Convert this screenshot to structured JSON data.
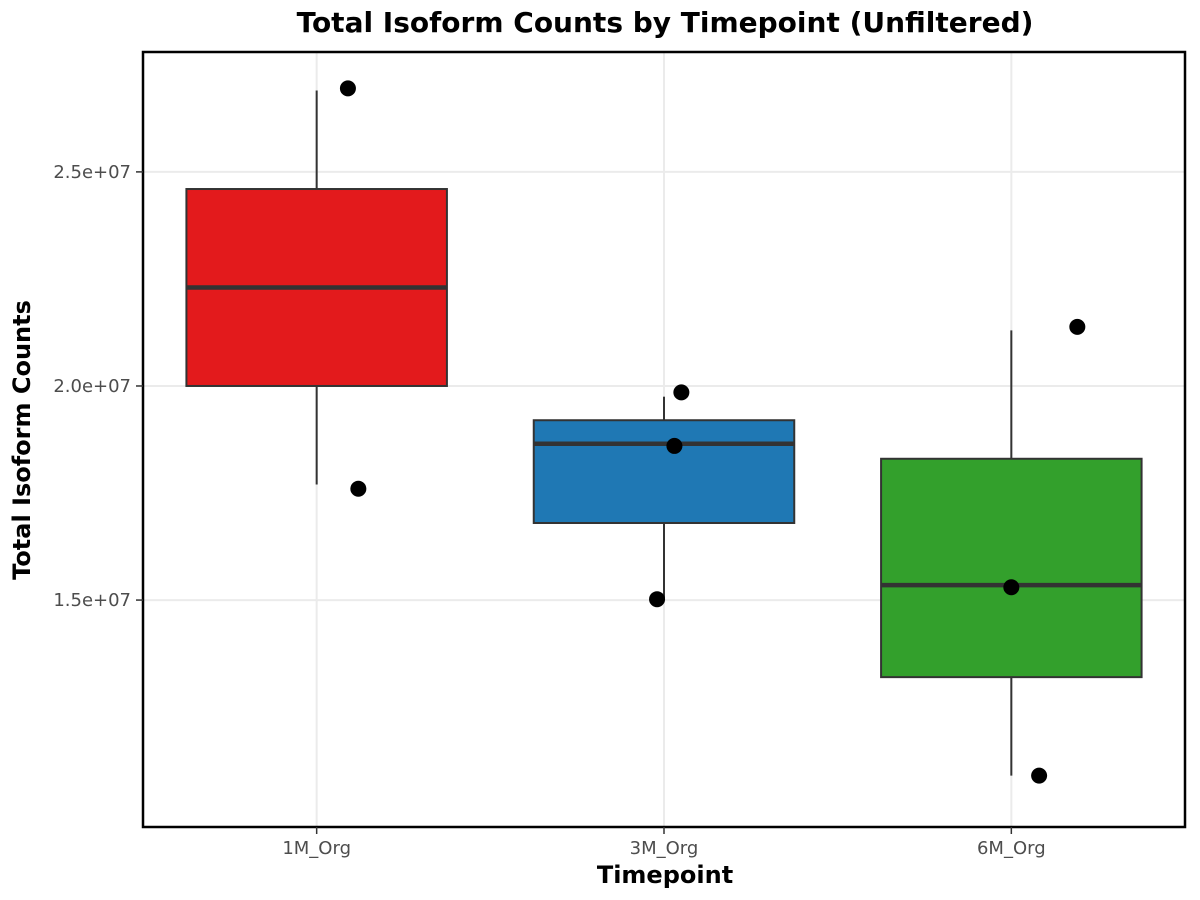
{
  "chart_data": {
    "type": "box",
    "title": "Total Isoform Counts by Timepoint (Unfiltered)",
    "xlabel": "Timepoint",
    "ylabel": "Total Isoform Counts",
    "categories": [
      "1M_Org",
      "3M_Org",
      "6M_Org"
    ],
    "ylim": [
      9700000,
      27800000
    ],
    "y_ticks": [
      15000000,
      20000000,
      25000000
    ],
    "y_tick_labels": [
      "1.5e+07",
      "2.0e+07",
      "2.5e+07"
    ],
    "grid": true,
    "legend": "none",
    "boxes": [
      {
        "category": "1M_Org",
        "color": "#e31a1c",
        "whisker_low": 17700000,
        "q1": 20000000,
        "median": 22300000,
        "q3": 24600000,
        "whisker_high": 26900000
      },
      {
        "category": "3M_Org",
        "color": "#1f78b4",
        "whisker_low": 15000000,
        "q1": 16800000,
        "median": 18650000,
        "q3": 19200000,
        "whisker_high": 19750000
      },
      {
        "category": "6M_Org",
        "color": "#33a02c",
        "whisker_low": 10900000,
        "q1": 13200000,
        "median": 15350000,
        "q3": 18300000,
        "whisker_high": 21300000
      }
    ],
    "points": [
      {
        "category": "1M_Org",
        "value": 26950000
      },
      {
        "category": "1M_Org",
        "value": 17600000
      },
      {
        "category": "3M_Org",
        "value": 19850000
      },
      {
        "category": "3M_Org",
        "value": 18600000
      },
      {
        "category": "3M_Org",
        "value": 15020000
      },
      {
        "category": "6M_Org",
        "value": 21380000
      },
      {
        "category": "6M_Org",
        "value": 15300000
      },
      {
        "category": "6M_Org",
        "value": 10900000
      }
    ]
  }
}
